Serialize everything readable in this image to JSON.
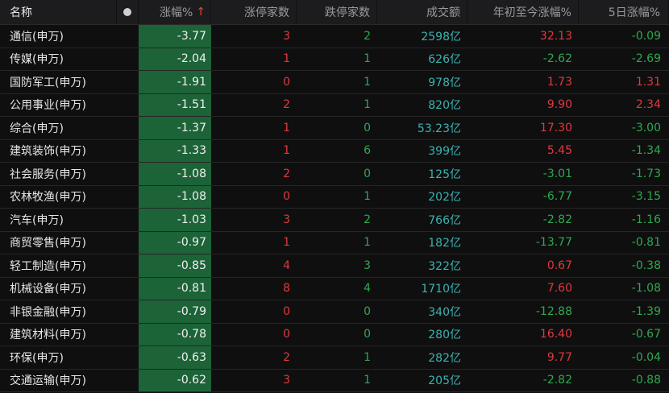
{
  "colors": {
    "up": "#e0393c",
    "down": "#2fa84f",
    "amount": "#3bb3b0",
    "change_bg": "#1d6338"
  },
  "header": {
    "name": "名称",
    "change": "涨幅%",
    "sort_icon": "arrow-up",
    "limit_up": "涨停家数",
    "limit_down": "跌停家数",
    "turnover": "成交额",
    "ytd": "年初至今涨幅%",
    "d5": "5日涨幅%"
  },
  "rows": [
    {
      "name": "通信(申万)",
      "change": "-3.77",
      "up": "3",
      "down": "2",
      "turnover": "2598亿",
      "ytd": "32.13",
      "d5": "-0.09"
    },
    {
      "name": "传媒(申万)",
      "change": "-2.04",
      "up": "1",
      "down": "1",
      "turnover": "626亿",
      "ytd": "-2.62",
      "d5": "-2.69"
    },
    {
      "name": "国防军工(申万)",
      "change": "-1.91",
      "up": "0",
      "down": "1",
      "turnover": "978亿",
      "ytd": "1.73",
      "d5": "1.31"
    },
    {
      "name": "公用事业(申万)",
      "change": "-1.51",
      "up": "2",
      "down": "1",
      "turnover": "820亿",
      "ytd": "9.90",
      "d5": "2.34"
    },
    {
      "name": "综合(申万)",
      "change": "-1.37",
      "up": "1",
      "down": "0",
      "turnover": "53.23亿",
      "ytd": "17.30",
      "d5": "-3.00"
    },
    {
      "name": "建筑装饰(申万)",
      "change": "-1.33",
      "up": "1",
      "down": "6",
      "turnover": "399亿",
      "ytd": "5.45",
      "d5": "-1.34"
    },
    {
      "name": "社会服务(申万)",
      "change": "-1.08",
      "up": "2",
      "down": "0",
      "turnover": "125亿",
      "ytd": "-3.01",
      "d5": "-1.73"
    },
    {
      "name": "农林牧渔(申万)",
      "change": "-1.08",
      "up": "0",
      "down": "1",
      "turnover": "202亿",
      "ytd": "-6.77",
      "d5": "-3.15"
    },
    {
      "name": "汽车(申万)",
      "change": "-1.03",
      "up": "3",
      "down": "2",
      "turnover": "766亿",
      "ytd": "-2.82",
      "d5": "-1.16"
    },
    {
      "name": "商贸零售(申万)",
      "change": "-0.97",
      "up": "1",
      "down": "1",
      "turnover": "182亿",
      "ytd": "-13.77",
      "d5": "-0.81"
    },
    {
      "name": "轻工制造(申万)",
      "change": "-0.85",
      "up": "4",
      "down": "3",
      "turnover": "322亿",
      "ytd": "0.67",
      "d5": "-0.38"
    },
    {
      "name": "机械设备(申万)",
      "change": "-0.81",
      "up": "8",
      "down": "4",
      "turnover": "1710亿",
      "ytd": "7.60",
      "d5": "-1.08"
    },
    {
      "name": "非银金融(申万)",
      "change": "-0.79",
      "up": "0",
      "down": "0",
      "turnover": "340亿",
      "ytd": "-12.88",
      "d5": "-1.39"
    },
    {
      "name": "建筑材料(申万)",
      "change": "-0.78",
      "up": "0",
      "down": "0",
      "turnover": "280亿",
      "ytd": "16.40",
      "d5": "-0.67"
    },
    {
      "name": "环保(申万)",
      "change": "-0.63",
      "up": "2",
      "down": "1",
      "turnover": "282亿",
      "ytd": "9.77",
      "d5": "-0.04"
    },
    {
      "name": "交通运输(申万)",
      "change": "-0.62",
      "up": "3",
      "down": "1",
      "turnover": "205亿",
      "ytd": "-2.82",
      "d5": "-0.88"
    }
  ]
}
